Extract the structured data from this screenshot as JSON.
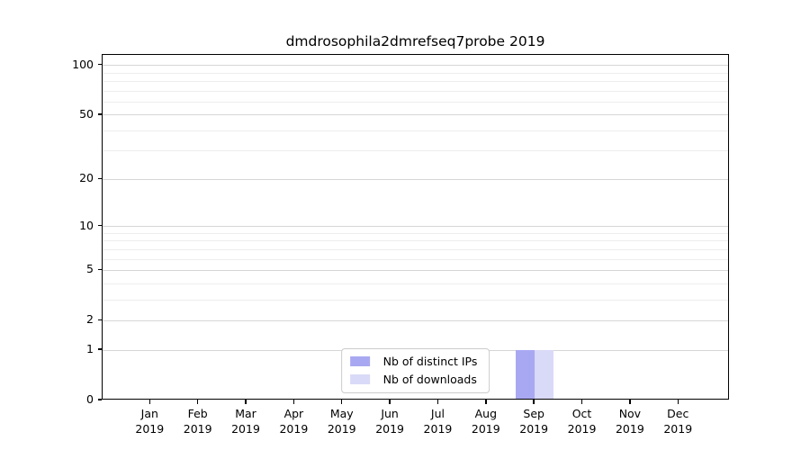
{
  "chart_data": {
    "type": "bar",
    "title": "dmdrosophila2dmrefseq7probe 2019",
    "categories": [
      "Jan 2019",
      "Feb 2019",
      "Mar 2019",
      "Apr 2019",
      "May 2019",
      "Jun 2019",
      "Jul 2019",
      "Aug 2019",
      "Sep 2019",
      "Oct 2019",
      "Nov 2019",
      "Dec 2019"
    ],
    "series": [
      {
        "name": "Nb of distinct IPs",
        "color": "#a8a8f2",
        "values": [
          0,
          0,
          0,
          0,
          0,
          0,
          0,
          0,
          1,
          0,
          0,
          0
        ]
      },
      {
        "name": "Nb of downloads",
        "color": "#d9d9f8",
        "values": [
          0,
          0,
          0,
          0,
          0,
          0,
          0,
          0,
          1,
          0,
          0,
          0
        ]
      }
    ],
    "xlabel": "",
    "ylabel": "",
    "y_axis": {
      "scale": "log1p",
      "major_ticks": [
        0,
        1,
        2,
        5,
        10,
        20,
        50,
        100
      ],
      "minor_gridlines": [
        3,
        4,
        6,
        7,
        8,
        9,
        30,
        40,
        60,
        70,
        80,
        90
      ],
      "ylim": [
        0,
        116
      ]
    },
    "grid": {
      "major_color": "#d6d6d6",
      "minor_color": "#ededed"
    },
    "legend": {
      "position": "lower center",
      "entries": [
        "Nb of distinct IPs",
        "Nb of downloads"
      ]
    },
    "spine_color": "#000000",
    "background": "#ffffff"
  }
}
